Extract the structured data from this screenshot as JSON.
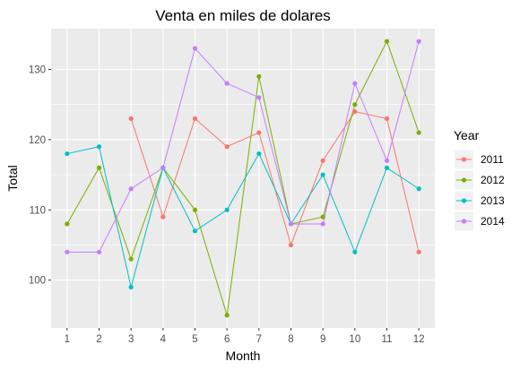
{
  "chart_data": {
    "type": "line",
    "title": "Venta en miles de dolares",
    "xlabel": "Month",
    "ylabel": "Total",
    "x": [
      1,
      2,
      3,
      4,
      5,
      6,
      7,
      8,
      9,
      10,
      11,
      12
    ],
    "xlim": [
      0.5,
      12.5
    ],
    "ylim": [
      93.2,
      135.8
    ],
    "yticks": [
      100,
      110,
      120,
      130
    ],
    "grid": true,
    "legend": {
      "title": "Year",
      "placement": "right"
    },
    "series": [
      {
        "name": "2011",
        "color": "#F8766D",
        "values": [
          null,
          null,
          123,
          109,
          123,
          119,
          121,
          105,
          117,
          124,
          123,
          104
        ]
      },
      {
        "name": "2012",
        "color": "#7CAE00",
        "values": [
          108,
          116,
          103,
          116,
          110,
          95,
          129,
          108,
          109,
          125,
          134,
          121
        ]
      },
      {
        "name": "2013",
        "color": "#00BFC4",
        "values": [
          118,
          119,
          99,
          116,
          107,
          110,
          118,
          108,
          115,
          104,
          116,
          113
        ]
      },
      {
        "name": "2014",
        "color": "#C77CFF",
        "values": [
          104,
          104,
          113,
          116,
          133,
          128,
          126,
          108,
          108,
          128,
          117,
          134
        ]
      }
    ]
  }
}
